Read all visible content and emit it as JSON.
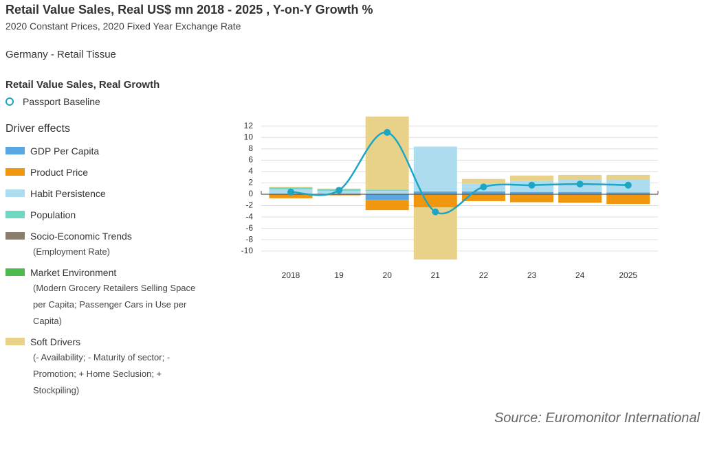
{
  "chart_data": {
    "type": "stacked-bar-line",
    "title": "Retail Value Sales, Real US$ mn 2018 - 2025 , Y-on-Y Growth %",
    "subtitle": "2020 Constant Prices, 2020 Fixed Year Exchange Rate",
    "market": "Germany - Retail Tissue",
    "line_heading": "Retail Value Sales, Real Growth",
    "legend_heading": "Driver effects",
    "source": "Source: Euromonitor International",
    "categories": [
      "2018",
      "19",
      "20",
      "21",
      "22",
      "23",
      "24",
      "2025"
    ],
    "ylim": [
      -12,
      14
    ],
    "yticks": [
      12,
      10,
      8,
      6,
      4,
      2,
      0,
      -2,
      -4,
      -6,
      -8,
      -10
    ],
    "grid": true,
    "line": {
      "name": "Passport Baseline",
      "color": "#1aa6c4",
      "values": [
        0.4,
        0.7,
        10.9,
        -3.1,
        1.3,
        1.6,
        1.8,
        1.6
      ]
    },
    "series": [
      {
        "name": "GDP Per Capita",
        "color": "#5aa6e0",
        "values": [
          0.1,
          0.1,
          -1.0,
          0.5,
          0.5,
          0.4,
          0.4,
          0.3
        ]
      },
      {
        "name": "Product Price",
        "color": "#f0960f",
        "values": [
          -0.7,
          -0.2,
          -1.8,
          -2.3,
          -1.2,
          -1.4,
          -1.5,
          -1.7
        ]
      },
      {
        "name": "Habit Persistence",
        "color": "#acdcee",
        "values": [
          0.8,
          0.5,
          0.6,
          7.9,
          1.4,
          2.0,
          2.2,
          2.3
        ]
      },
      {
        "name": "Population",
        "color": "#6fd8c2",
        "values": [
          0.3,
          0.3,
          0.2,
          0,
          0,
          0,
          0,
          0
        ]
      },
      {
        "name": "Socio-Economic Trends",
        "color": "#8b7d6b",
        "description": "(Employment Rate)",
        "values": [
          0,
          0,
          0,
          0,
          0,
          0,
          0,
          0
        ]
      },
      {
        "name": "Market Environment",
        "color": "#4cba4c",
        "description": "(Modern Grocery Retailers Selling Space per Capita; Passenger Cars in Use per Capita)",
        "values": [
          0,
          0,
          0,
          0,
          0,
          0,
          0,
          0
        ]
      },
      {
        "name": "Soft Drivers",
        "color": "#e8d28a",
        "description": "(- Availability; - Maturity of sector; - Promotion; + Home Seclusion; + Stockpiling)",
        "values": [
          0.1,
          0.1,
          12.9,
          -9.2,
          0.8,
          0.9,
          0.8,
          0.8
        ]
      }
    ]
  }
}
